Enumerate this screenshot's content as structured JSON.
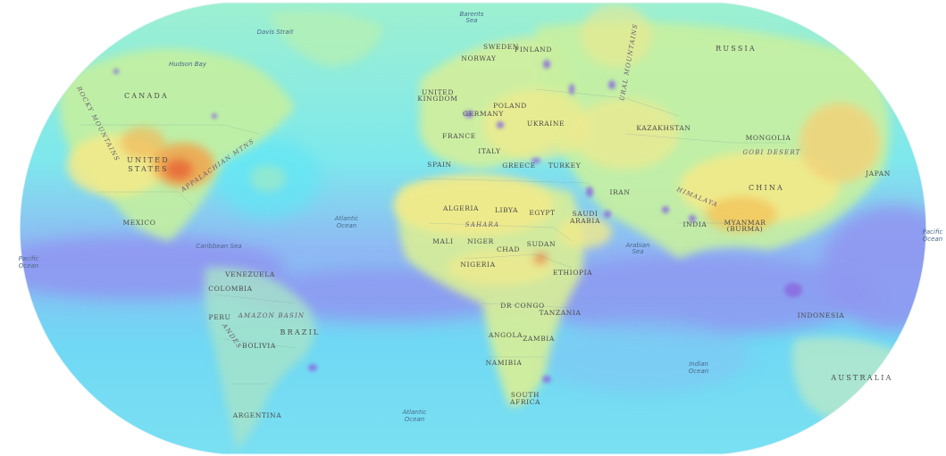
{
  "map": {
    "colors": {
      "low_purple": "#8f95f0",
      "cyan": "#5fe6f5",
      "green": "#b8f0b0",
      "yellow": "#f2ea8a",
      "orange": "#f2a24a",
      "red": "#e86a3a",
      "background": "#ffffff"
    },
    "labels": {
      "canada": "CANADA",
      "united_states_1": "UNITED",
      "united_states_2": "STATES",
      "mexico": "MEXICO",
      "rocky_mountains": "ROCKY MOUNTAINS",
      "appalachian": "APPALACHIAN MTNS",
      "hudson_bay": "Hudson Bay",
      "davis_strait": "Davis Strait",
      "caribbean": "Caribbean Sea",
      "venezuela": "VENEZUELA",
      "colombia": "COLOMBIA",
      "amazon": "AMAZON BASIN",
      "peru": "PERU",
      "brazil": "BRAZIL",
      "bolivia": "BOLIVIA",
      "andes": "ANDES",
      "argentina": "ARGENTINA",
      "sweden": "SWEDEN",
      "finland": "FINLAND",
      "norway": "NORWAY",
      "united_kingdom_1": "UNITED",
      "united_kingdom_2": "KINGDOM",
      "germany": "GERMANY",
      "poland": "POLAND",
      "france": "FRANCE",
      "ukraine": "UKRAINE",
      "spain": "SPAIN",
      "italy": "ITALY",
      "greece": "GREECE",
      "turkey": "TURKEY",
      "algeria": "ALGERIA",
      "libya": "LIBYA",
      "egypt": "EGYPT",
      "sahara": "SAHARA",
      "mali": "MALI",
      "niger": "NIGER",
      "chad": "CHAD",
      "sudan": "SUDAN",
      "nigeria": "NIGERIA",
      "ethiopia": "ETHIOPIA",
      "dr_congo": "DR CONGO",
      "tanzania": "TANZANIA",
      "angola": "ANGOLA",
      "zambia": "ZAMBIA",
      "namibia": "NAMIBIA",
      "south_africa_1": "SOUTH",
      "south_africa_2": "AFRICA",
      "russia": "RUSSIA",
      "ural": "URAL MOUNTAINS",
      "kazakhstan": "KAZAKHSTAN",
      "mongolia": "MONGOLIA",
      "gobi": "GOBI DESERT",
      "iran": "IRAN",
      "saudi_1": "SAUDI",
      "saudi_2": "ARABIA",
      "himalaya": "HIMALAYA",
      "china": "CHINA",
      "india": "INDIA",
      "myanmar_1": "MYANMAR",
      "myanmar_2": "(BURMA)",
      "japan": "JAPAN",
      "indonesia": "INDONESIA",
      "australia": "AUSTRALIA",
      "barents_1": "Barents",
      "barents_2": "Sea",
      "arabian_1": "Arabian",
      "arabian_2": "Sea",
      "atlantic_n_1": "Atlantic",
      "atlantic_n_2": "Ocean",
      "atlantic_s_1": "Atlantic",
      "atlantic_s_2": "Ocean",
      "pacific_w_1": "Pacific",
      "pacific_w_2": "Ocean",
      "pacific_e_1": "Pacific",
      "pacific_e_2": "Ocean",
      "indian_1": "Indian",
      "indian_2": "Ocean"
    }
  }
}
